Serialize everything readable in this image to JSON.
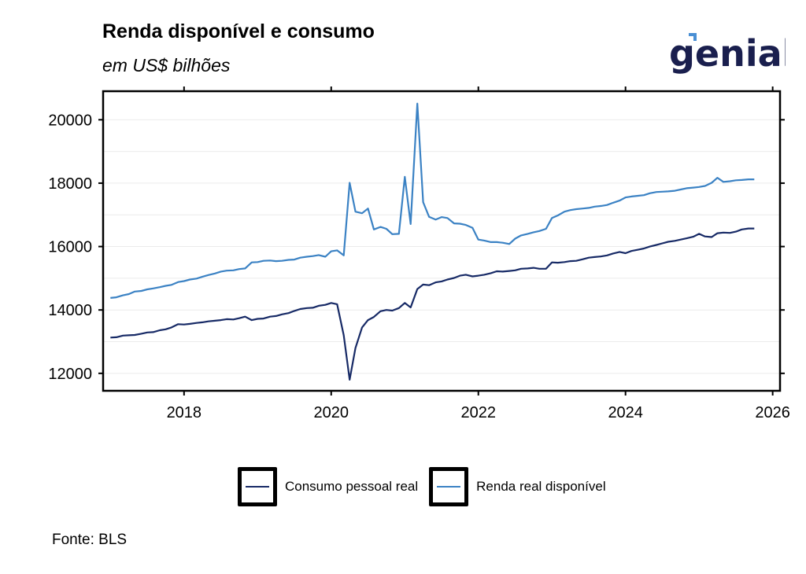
{
  "title": "Renda disponível e consumo",
  "subtitle": "em US$ bilhões",
  "logo_text": "genial",
  "source": "Fonte: BLS",
  "colors": {
    "consumo": "#172a66",
    "renda": "#3b82c4",
    "logo": "#1a1f4e",
    "logo_accent": "#4a8fd4"
  },
  "chart_data": {
    "type": "line",
    "xlabel": "",
    "ylabel": "",
    "xlim": [
      2016.6,
      2026.1
    ],
    "ylim": [
      11600,
      20900
    ],
    "xticks": [
      2018,
      2020,
      2022,
      2024,
      2026
    ],
    "yticks": [
      12000,
      14000,
      16000,
      18000,
      20000
    ],
    "grid": true,
    "legend_position": "bottom",
    "series": [
      {
        "name": "Consumo pessoal real",
        "color": "#172a66",
        "points": [
          [
            2017.0,
            13130
          ],
          [
            2017.08,
            13140
          ],
          [
            2017.17,
            13190
          ],
          [
            2017.25,
            13200
          ],
          [
            2017.33,
            13210
          ],
          [
            2017.42,
            13250
          ],
          [
            2017.5,
            13290
          ],
          [
            2017.58,
            13300
          ],
          [
            2017.67,
            13360
          ],
          [
            2017.75,
            13390
          ],
          [
            2017.83,
            13450
          ],
          [
            2017.92,
            13550
          ],
          [
            2018.0,
            13540
          ],
          [
            2018.08,
            13560
          ],
          [
            2018.17,
            13590
          ],
          [
            2018.25,
            13610
          ],
          [
            2018.33,
            13640
          ],
          [
            2018.42,
            13660
          ],
          [
            2018.5,
            13680
          ],
          [
            2018.58,
            13710
          ],
          [
            2018.67,
            13700
          ],
          [
            2018.75,
            13740
          ],
          [
            2018.83,
            13790
          ],
          [
            2018.92,
            13680
          ],
          [
            2019.0,
            13720
          ],
          [
            2019.08,
            13730
          ],
          [
            2019.17,
            13790
          ],
          [
            2019.25,
            13810
          ],
          [
            2019.33,
            13860
          ],
          [
            2019.42,
            13900
          ],
          [
            2019.5,
            13970
          ],
          [
            2019.58,
            14030
          ],
          [
            2019.67,
            14060
          ],
          [
            2019.75,
            14070
          ],
          [
            2019.83,
            14130
          ],
          [
            2019.92,
            14160
          ],
          [
            2020.0,
            14220
          ],
          [
            2020.08,
            14180
          ],
          [
            2020.17,
            13200
          ],
          [
            2020.25,
            11800
          ],
          [
            2020.33,
            12800
          ],
          [
            2020.42,
            13450
          ],
          [
            2020.5,
            13680
          ],
          [
            2020.58,
            13780
          ],
          [
            2020.67,
            13960
          ],
          [
            2020.75,
            14000
          ],
          [
            2020.83,
            13980
          ],
          [
            2020.92,
            14060
          ],
          [
            2021.0,
            14220
          ],
          [
            2021.08,
            14080
          ],
          [
            2021.17,
            14660
          ],
          [
            2021.25,
            14800
          ],
          [
            2021.33,
            14780
          ],
          [
            2021.42,
            14870
          ],
          [
            2021.5,
            14900
          ],
          [
            2021.58,
            14960
          ],
          [
            2021.67,
            15010
          ],
          [
            2021.75,
            15080
          ],
          [
            2021.83,
            15110
          ],
          [
            2021.92,
            15060
          ],
          [
            2022.0,
            15080
          ],
          [
            2022.08,
            15110
          ],
          [
            2022.17,
            15160
          ],
          [
            2022.25,
            15220
          ],
          [
            2022.33,
            15210
          ],
          [
            2022.42,
            15230
          ],
          [
            2022.5,
            15250
          ],
          [
            2022.58,
            15300
          ],
          [
            2022.67,
            15310
          ],
          [
            2022.75,
            15330
          ],
          [
            2022.83,
            15300
          ],
          [
            2022.92,
            15300
          ],
          [
            2023.0,
            15500
          ],
          [
            2023.08,
            15490
          ],
          [
            2023.17,
            15510
          ],
          [
            2023.25,
            15540
          ],
          [
            2023.33,
            15550
          ],
          [
            2023.42,
            15600
          ],
          [
            2023.5,
            15650
          ],
          [
            2023.58,
            15670
          ],
          [
            2023.67,
            15690
          ],
          [
            2023.75,
            15720
          ],
          [
            2023.83,
            15780
          ],
          [
            2023.92,
            15830
          ],
          [
            2024.0,
            15790
          ],
          [
            2024.08,
            15860
          ],
          [
            2024.17,
            15900
          ],
          [
            2024.25,
            15940
          ],
          [
            2024.33,
            16000
          ],
          [
            2024.42,
            16050
          ],
          [
            2024.5,
            16100
          ],
          [
            2024.58,
            16150
          ],
          [
            2024.67,
            16180
          ],
          [
            2024.75,
            16220
          ],
          [
            2024.83,
            16260
          ],
          [
            2024.92,
            16310
          ],
          [
            2025.0,
            16400
          ],
          [
            2025.08,
            16320
          ],
          [
            2025.17,
            16300
          ],
          [
            2025.25,
            16420
          ],
          [
            2025.33,
            16440
          ],
          [
            2025.42,
            16430
          ],
          [
            2025.5,
            16470
          ],
          [
            2025.58,
            16540
          ],
          [
            2025.67,
            16570
          ],
          [
            2025.75,
            16570
          ]
        ]
      },
      {
        "name": "Renda real disponível",
        "color": "#3b82c4",
        "points": [
          [
            2017.0,
            14380
          ],
          [
            2017.08,
            14400
          ],
          [
            2017.17,
            14460
          ],
          [
            2017.25,
            14500
          ],
          [
            2017.33,
            14580
          ],
          [
            2017.42,
            14600
          ],
          [
            2017.5,
            14650
          ],
          [
            2017.58,
            14680
          ],
          [
            2017.67,
            14720
          ],
          [
            2017.75,
            14760
          ],
          [
            2017.83,
            14790
          ],
          [
            2017.92,
            14880
          ],
          [
            2018.0,
            14910
          ],
          [
            2018.08,
            14960
          ],
          [
            2018.17,
            14990
          ],
          [
            2018.25,
            15050
          ],
          [
            2018.33,
            15100
          ],
          [
            2018.42,
            15150
          ],
          [
            2018.5,
            15210
          ],
          [
            2018.58,
            15240
          ],
          [
            2018.67,
            15250
          ],
          [
            2018.75,
            15290
          ],
          [
            2018.83,
            15310
          ],
          [
            2018.92,
            15500
          ],
          [
            2019.0,
            15510
          ],
          [
            2019.08,
            15550
          ],
          [
            2019.17,
            15560
          ],
          [
            2019.25,
            15540
          ],
          [
            2019.33,
            15550
          ],
          [
            2019.42,
            15580
          ],
          [
            2019.5,
            15590
          ],
          [
            2019.58,
            15650
          ],
          [
            2019.67,
            15680
          ],
          [
            2019.75,
            15700
          ],
          [
            2019.83,
            15730
          ],
          [
            2019.92,
            15680
          ],
          [
            2020.0,
            15850
          ],
          [
            2020.08,
            15880
          ],
          [
            2020.17,
            15720
          ],
          [
            2020.25,
            18010
          ],
          [
            2020.33,
            17100
          ],
          [
            2020.42,
            17050
          ],
          [
            2020.5,
            17200
          ],
          [
            2020.58,
            16540
          ],
          [
            2020.67,
            16620
          ],
          [
            2020.75,
            16560
          ],
          [
            2020.83,
            16390
          ],
          [
            2020.92,
            16400
          ],
          [
            2021.0,
            18200
          ],
          [
            2021.08,
            16710
          ],
          [
            2021.17,
            20510
          ],
          [
            2021.25,
            17400
          ],
          [
            2021.33,
            16940
          ],
          [
            2021.42,
            16850
          ],
          [
            2021.5,
            16930
          ],
          [
            2021.58,
            16900
          ],
          [
            2021.67,
            16730
          ],
          [
            2021.75,
            16720
          ],
          [
            2021.83,
            16680
          ],
          [
            2021.92,
            16590
          ],
          [
            2022.0,
            16220
          ],
          [
            2022.08,
            16190
          ],
          [
            2022.17,
            16140
          ],
          [
            2022.25,
            16140
          ],
          [
            2022.33,
            16120
          ],
          [
            2022.42,
            16080
          ],
          [
            2022.5,
            16250
          ],
          [
            2022.58,
            16350
          ],
          [
            2022.67,
            16400
          ],
          [
            2022.75,
            16450
          ],
          [
            2022.83,
            16490
          ],
          [
            2022.92,
            16560
          ],
          [
            2023.0,
            16900
          ],
          [
            2023.08,
            16980
          ],
          [
            2023.17,
            17100
          ],
          [
            2023.25,
            17150
          ],
          [
            2023.33,
            17180
          ],
          [
            2023.42,
            17200
          ],
          [
            2023.5,
            17220
          ],
          [
            2023.58,
            17260
          ],
          [
            2023.67,
            17280
          ],
          [
            2023.75,
            17310
          ],
          [
            2023.83,
            17380
          ],
          [
            2023.92,
            17450
          ],
          [
            2024.0,
            17550
          ],
          [
            2024.08,
            17580
          ],
          [
            2024.17,
            17600
          ],
          [
            2024.25,
            17620
          ],
          [
            2024.33,
            17680
          ],
          [
            2024.42,
            17720
          ],
          [
            2024.5,
            17730
          ],
          [
            2024.58,
            17740
          ],
          [
            2024.67,
            17760
          ],
          [
            2024.75,
            17800
          ],
          [
            2024.83,
            17840
          ],
          [
            2024.92,
            17860
          ],
          [
            2025.0,
            17880
          ],
          [
            2025.08,
            17910
          ],
          [
            2025.17,
            18010
          ],
          [
            2025.25,
            18170
          ],
          [
            2025.33,
            18040
          ],
          [
            2025.42,
            18060
          ],
          [
            2025.5,
            18090
          ],
          [
            2025.58,
            18100
          ],
          [
            2025.67,
            18120
          ],
          [
            2025.75,
            18120
          ]
        ]
      }
    ]
  }
}
